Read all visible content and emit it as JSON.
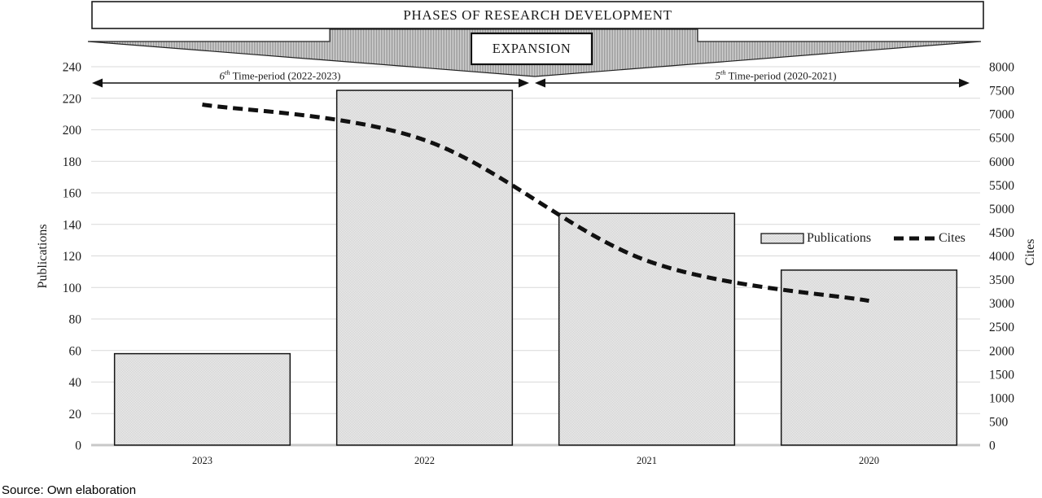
{
  "banner": {
    "title": "PHASES OF RESEARCH DEVELOPMENT",
    "expansion": "EXPANSION"
  },
  "periods": {
    "left": {
      "num": "6",
      "sup": "th",
      "rest": " Time-period (2022-2023)"
    },
    "right": {
      "num": "5",
      "sup": "th",
      "rest": " Time-period (2020-2021)"
    }
  },
  "legend": {
    "publications": "Publications",
    "cites": "Cites"
  },
  "axis_titles": {
    "left": "Publications",
    "right": "Cites"
  },
  "source_note": "Source: Own elaboration",
  "colors": {
    "grid": "#d9d9d9",
    "baseline": "#c8c8c8",
    "ink": "#161616",
    "bar_fill_light": "#f6f6f6",
    "bar_fill_dark": "#c9c9c9",
    "band_stripe_dark": "#8e8e8e",
    "band_stripe_light": "#dedede"
  },
  "chart_data": {
    "type": "combo",
    "categories": [
      "2023",
      "2022",
      "2021",
      "2020"
    ],
    "series": [
      {
        "name": "Publications",
        "type": "bar",
        "axis": "left",
        "values": [
          58,
          225,
          147,
          111
        ]
      },
      {
        "name": "Cites",
        "type": "line",
        "style": "dashed",
        "axis": "right",
        "values": [
          7200,
          6450,
          3900,
          3050
        ]
      }
    ],
    "left_axis": {
      "title": "Publications",
      "min": 0,
      "max": 240,
      "step": 20
    },
    "right_axis": {
      "title": "Cites",
      "min": 0,
      "max": 8000,
      "step": 500
    },
    "grid": true,
    "legend_position": "inside right",
    "annotations": {
      "header": "PHASES OF RESEARCH DEVELOPMENT",
      "phase": "EXPANSION",
      "period_spans": [
        "6th Time-period (2022-2023)",
        "5th Time-period (2020-2021)"
      ]
    }
  }
}
